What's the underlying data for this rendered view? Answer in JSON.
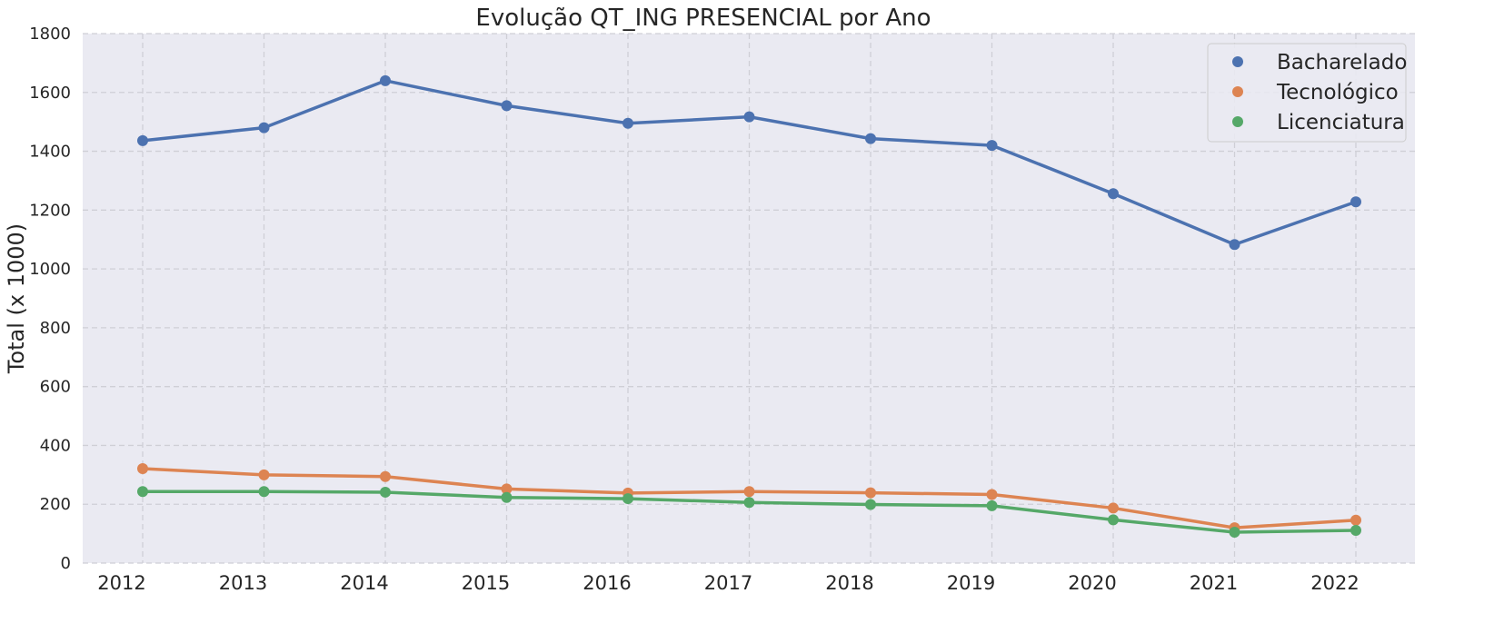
{
  "chart_data": {
    "type": "line",
    "title": "Evolução QT_ING PRESENCIAL por Ano",
    "xlabel": "",
    "ylabel": "Total (x 1000)",
    "x": [
      2012,
      2013,
      2014,
      2015,
      2016,
      2017,
      2018,
      2019,
      2020,
      2021,
      2022
    ],
    "ylim": [
      0,
      1800
    ],
    "yticks": [
      0,
      200,
      400,
      600,
      800,
      1000,
      1200,
      1400,
      1600,
      1800
    ],
    "grid": true,
    "legend_position": "top-right",
    "series": [
      {
        "name": "Bacharelado",
        "color": "#4c72b0",
        "values": [
          1436,
          1480,
          1640,
          1555,
          1495,
          1517,
          1443,
          1420,
          1256,
          1083,
          1228
        ]
      },
      {
        "name": "Tecnológico",
        "color": "#dd8452",
        "values": [
          321,
          300,
          294,
          252,
          238,
          243,
          239,
          233,
          187,
          120,
          146
        ]
      },
      {
        "name": "Licenciatura",
        "color": "#55a868",
        "values": [
          243,
          243,
          241,
          223,
          219,
          206,
          199,
          195,
          147,
          105,
          111
        ]
      }
    ]
  }
}
